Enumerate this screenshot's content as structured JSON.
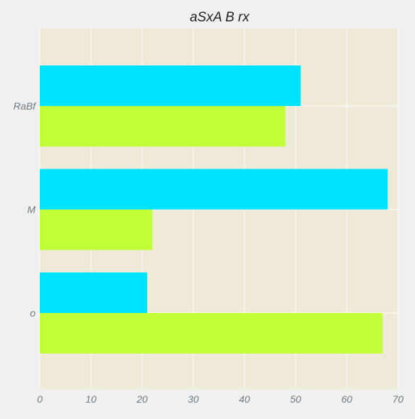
{
  "chart_data": {
    "type": "bar",
    "orientation": "horizontal",
    "title": "aSxA B rx",
    "xlabel": "",
    "ylabel": "",
    "categories": [
      "o",
      "M",
      "RaBf"
    ],
    "series": [
      {
        "values": [
          67,
          22,
          48
        ],
        "color": "#c0ff38"
      },
      {
        "values": [
          21,
          68,
          51
        ],
        "color": "#00e3ff"
      }
    ],
    "xlim": [
      0,
      70
    ],
    "x_ticks": [
      0,
      10,
      20,
      30,
      40,
      50,
      60,
      70
    ],
    "grid": true,
    "legend": "none",
    "colors": {
      "page_background": "#f0f0f0",
      "plot_background": "#efe9d8",
      "grid": "#ffffff",
      "tick_text": "#6b7b84",
      "title_text": "#222222"
    }
  }
}
